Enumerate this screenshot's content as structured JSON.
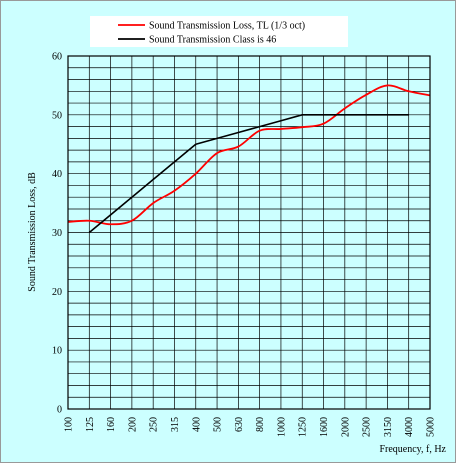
{
  "chart_data": {
    "type": "line",
    "title": "",
    "xlabel": "Frequency, f, Hz",
    "ylabel": "Sound Transmission Loss, dB",
    "x": [
      "100",
      "125",
      "160",
      "200",
      "250",
      "315",
      "400",
      "500",
      "630",
      "800",
      "1000",
      "1250",
      "1600",
      "2000",
      "2500",
      "3150",
      "4000",
      "5000"
    ],
    "ylim": [
      0,
      60
    ],
    "yticks": [
      0,
      10,
      20,
      30,
      40,
      50,
      60
    ],
    "grid": true,
    "legend_position": "top",
    "background": "#ccffff",
    "series": [
      {
        "name": "Sound Transmission Loss, TL (1/3 oct)",
        "color": "#ff0000",
        "values": [
          31.8,
          32.0,
          31.4,
          32.0,
          35.0,
          37.1,
          40.0,
          43.5,
          44.6,
          47.3,
          47.6,
          47.9,
          48.5,
          51.1,
          53.4,
          55.0,
          54.0,
          53.3
        ]
      },
      {
        "name": "Sound Transmission Class is 46",
        "color": "#000000",
        "values": [
          null,
          30.0,
          33.0,
          36.0,
          39.0,
          42.0,
          45.0,
          46.0,
          47.0,
          48.0,
          49.0,
          50.0,
          50.0,
          50.0,
          50.0,
          50.0,
          50.0,
          null
        ]
      }
    ]
  }
}
